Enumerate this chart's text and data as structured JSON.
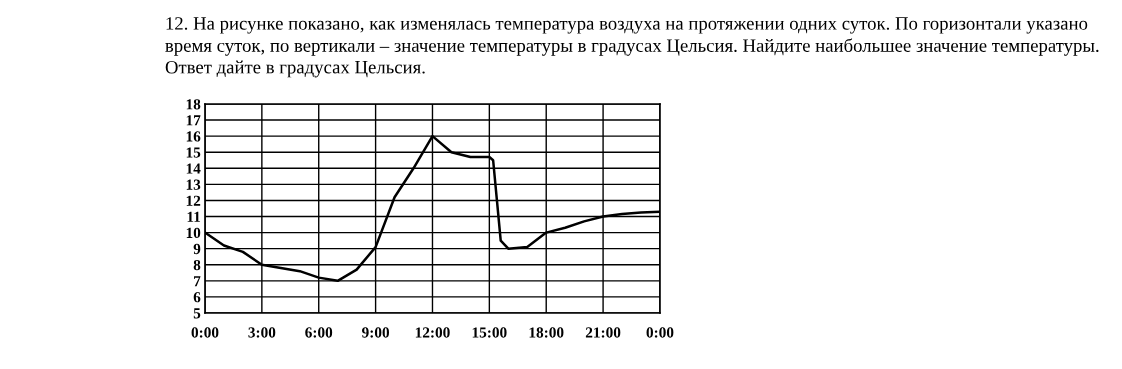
{
  "chart_data": {
    "type": "line",
    "title": "12. На рисунке показано, как изменялась температура воздуха на протяжении одних суток. По горизонтали указано время суток, по вертикали – значение температуры в градусах Цельсия. Найдите наибольшее значение температуры. Ответ дайте в градусах Цельсия.",
    "x": [
      0,
      1,
      2,
      3,
      4,
      5,
      6,
      7,
      8,
      9,
      10,
      11,
      12,
      13,
      14,
      15,
      15.2,
      15.4,
      15.6,
      16,
      17,
      18,
      19,
      20,
      21,
      22,
      23,
      24
    ],
    "series": [
      {
        "color": "#000000",
        "values": [
          10,
          9.2,
          8.8,
          8.0,
          7.8,
          7.6,
          7.2,
          7.0,
          7.7,
          9.1,
          12.2,
          14.0,
          16.0,
          15.0,
          14.7,
          14.7,
          14.5,
          12,
          9.5,
          9.0,
          9.1,
          10.0,
          10.3,
          10.7,
          11.0,
          11.15,
          11.25,
          11.3
        ]
      }
    ],
    "xlim": [
      0,
      24
    ],
    "xticks": [
      {
        "value": 0,
        "label": "0:00"
      },
      {
        "value": 3,
        "label": "3:00"
      },
      {
        "value": 6,
        "label": "6:00"
      },
      {
        "value": 9,
        "label": "9:00"
      },
      {
        "value": 12,
        "label": "12:00"
      },
      {
        "value": 15,
        "label": "15:00"
      },
      {
        "value": 18,
        "label": "18:00"
      },
      {
        "value": 21,
        "label": "21:00"
      },
      {
        "value": 24,
        "label": "0:00"
      }
    ],
    "ylim": [
      5,
      18
    ],
    "yticks": [
      5,
      6,
      7,
      8,
      9,
      10,
      11,
      12,
      13,
      14,
      15,
      16,
      17,
      18
    ],
    "grid": true,
    "legend": false,
    "marker": "none",
    "line_style": "solid"
  }
}
